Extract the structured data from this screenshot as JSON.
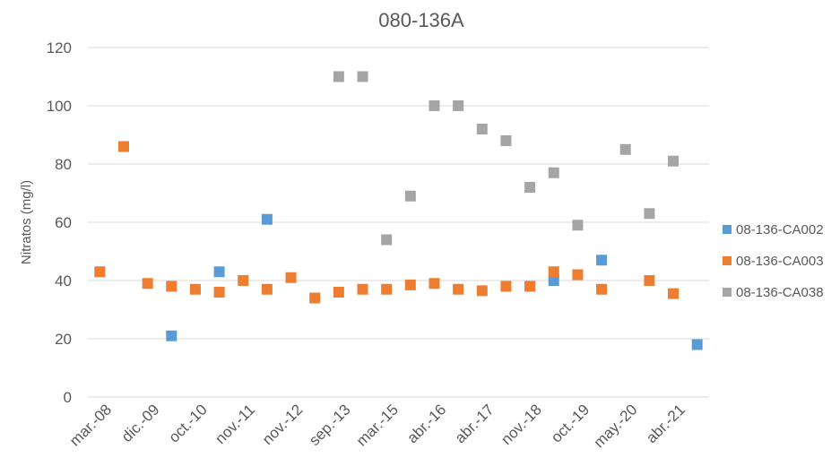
{
  "chart_data": {
    "type": "scatter",
    "title": "080-136A",
    "ylabel": "Nitratos (mg/l)",
    "xlabel": "",
    "ylim": [
      0,
      120
    ],
    "yticks": [
      0,
      20,
      40,
      60,
      80,
      100,
      120
    ],
    "grid": true,
    "legend_position": "right",
    "x_tick_labels": [
      "mar.-08",
      "dic.-09",
      "oct.-10",
      "nov.-11",
      "nov.-12",
      "sep.-13",
      "mar.-15",
      "abr.-16",
      "abr.-17",
      "nov.-18",
      "oct.-19",
      "may.-20",
      "abr.-21"
    ],
    "x_tick_positions": [
      1,
      3,
      5,
      7,
      9,
      11,
      13,
      15,
      17,
      19,
      21,
      23,
      25
    ],
    "x_range": [
      0.5,
      26.5
    ],
    "series": [
      {
        "name": "08-136-CA002",
        "color": "#5b9bd5",
        "points": [
          [
            4,
            21
          ],
          [
            6,
            43
          ],
          [
            8,
            61
          ],
          [
            20,
            40
          ],
          [
            22,
            47
          ],
          [
            26,
            18
          ]
        ]
      },
      {
        "name": "08-136-CA003",
        "color": "#ed7d31",
        "points": [
          [
            1,
            43
          ],
          [
            2,
            86
          ],
          [
            3,
            39
          ],
          [
            4,
            38
          ],
          [
            5,
            37
          ],
          [
            6,
            36
          ],
          [
            7,
            40
          ],
          [
            8,
            37
          ],
          [
            9,
            41
          ],
          [
            10,
            34
          ],
          [
            11,
            36
          ],
          [
            12,
            37
          ],
          [
            13,
            37
          ],
          [
            14,
            38.5
          ],
          [
            15,
            39
          ],
          [
            16,
            37
          ],
          [
            17,
            36.5
          ],
          [
            18,
            38
          ],
          [
            19,
            38
          ],
          [
            20,
            43
          ],
          [
            21,
            42
          ],
          [
            22,
            37
          ],
          [
            24,
            40
          ],
          [
            25,
            35.5
          ]
        ]
      },
      {
        "name": "08-136-CA038",
        "color": "#a5a5a5",
        "points": [
          [
            11,
            110
          ],
          [
            12,
            110
          ],
          [
            13,
            54
          ],
          [
            14,
            69
          ],
          [
            15,
            100
          ],
          [
            16,
            100
          ],
          [
            17,
            92
          ],
          [
            18,
            88
          ],
          [
            19,
            72
          ],
          [
            20,
            77
          ],
          [
            21,
            59
          ],
          [
            23,
            85
          ],
          [
            24,
            63
          ],
          [
            25,
            81
          ]
        ]
      }
    ]
  }
}
